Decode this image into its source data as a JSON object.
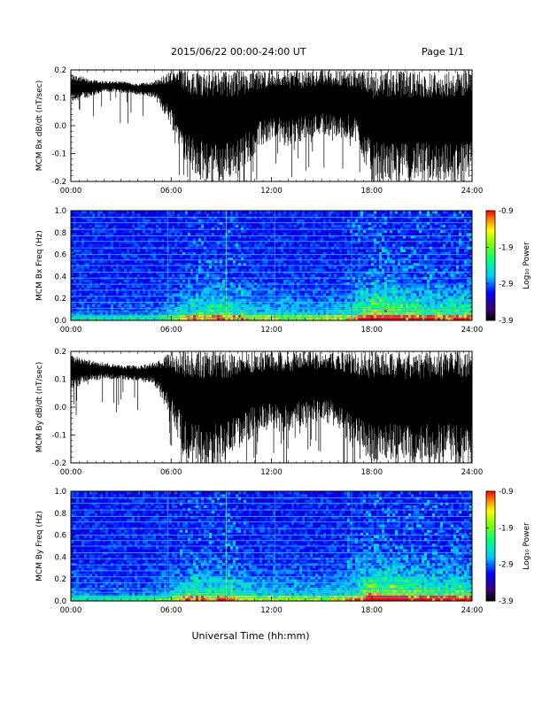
{
  "header": {
    "title": "2015/06/22  00:00-24:00 UT",
    "page": "Page 1/1"
  },
  "footer": {
    "xlabel": "Universal Time (hh:mm)"
  },
  "chart_data": [
    {
      "type": "line",
      "ylabel": "MCM Bx dB/dt (nT/sec)",
      "xlabel": "",
      "x_ticks": [
        "00:00",
        "06:00",
        "12:00",
        "18:00",
        "24:00"
      ],
      "y_ticks": [
        "-0.2",
        "-0.1",
        "0.0",
        "0.1",
        "0.2"
      ],
      "xlim_hours": [
        0,
        24
      ],
      "ylim": [
        -0.2,
        0.2
      ],
      "series_envelope": {
        "hours": [
          0,
          1,
          2,
          3,
          4,
          5,
          6,
          7,
          8,
          9,
          10,
          11,
          12,
          13,
          14,
          15,
          16,
          17,
          18,
          19,
          20,
          21,
          22,
          23,
          24
        ],
        "upper": [
          0.19,
          0.17,
          0.16,
          0.16,
          0.15,
          0.16,
          0.2,
          0.2,
          0.2,
          0.2,
          0.2,
          0.2,
          0.2,
          0.2,
          0.2,
          0.2,
          0.2,
          0.2,
          0.2,
          0.2,
          0.2,
          0.2,
          0.2,
          0.2,
          0.2
        ],
        "lower": [
          0.08,
          0.1,
          0.12,
          0.12,
          0.11,
          0.1,
          0.0,
          -0.15,
          -0.2,
          -0.2,
          -0.18,
          -0.1,
          -0.05,
          -0.08,
          -0.05,
          -0.03,
          -0.05,
          -0.05,
          -0.2,
          -0.2,
          -0.2,
          -0.2,
          -0.2,
          -0.2,
          -0.2
        ]
      }
    },
    {
      "type": "heatmap",
      "ylabel": "MCM Bx Freq (Hz)",
      "colorbar_label": "Log₁₀ Power",
      "colorbar_ticks": [
        "-0.9",
        "-1.9",
        "-2.9",
        "-3.9"
      ],
      "colorbar_range": [
        -3.9,
        -0.9
      ],
      "x_ticks": [
        "00:00",
        "06:00",
        "12:00",
        "18:00",
        "24:00"
      ],
      "y_ticks": [
        "0.0",
        "0.2",
        "0.4",
        "0.6",
        "0.8",
        "1.0"
      ],
      "xlim_hours": [
        0,
        24
      ],
      "ylim": [
        0,
        1
      ],
      "harmonic_lines_hz": [
        0.03,
        0.055,
        0.08,
        0.11,
        0.165,
        0.22,
        0.275,
        0.33,
        0.385,
        0.44,
        0.5,
        0.55,
        0.6,
        0.66,
        0.72,
        0.77,
        0.83,
        0.89,
        0.94
      ],
      "activity_by_hour": [
        0.1,
        0.1,
        0.1,
        0.1,
        0.1,
        0.12,
        0.25,
        0.45,
        0.55,
        0.55,
        0.45,
        0.35,
        0.35,
        0.3,
        0.3,
        0.3,
        0.35,
        0.45,
        0.9,
        0.85,
        0.7,
        0.6,
        0.55,
        0.6,
        0.6
      ]
    },
    {
      "type": "line",
      "ylabel": "MCM By dB/dt (nT/sec)",
      "xlabel": "",
      "x_ticks": [
        "00:00",
        "06:00",
        "12:00",
        "18:00",
        "24:00"
      ],
      "y_ticks": [
        "-0.2",
        "-0.1",
        "0.0",
        "0.1",
        "0.2"
      ],
      "xlim_hours": [
        0,
        24
      ],
      "ylim": [
        -0.2,
        0.2
      ],
      "series_envelope": {
        "hours": [
          0,
          1,
          2,
          3,
          4,
          5,
          6,
          7,
          8,
          9,
          10,
          11,
          12,
          13,
          14,
          15,
          16,
          17,
          18,
          19,
          20,
          21,
          22,
          23,
          24
        ],
        "upper": [
          0.19,
          0.17,
          0.16,
          0.15,
          0.15,
          0.16,
          0.2,
          0.2,
          0.2,
          0.2,
          0.2,
          0.2,
          0.2,
          0.2,
          0.2,
          0.2,
          0.2,
          0.2,
          0.2,
          0.2,
          0.2,
          0.2,
          0.2,
          0.2,
          0.2
        ],
        "lower": [
          0.06,
          0.09,
          0.1,
          0.1,
          0.09,
          0.08,
          -0.05,
          -0.2,
          -0.2,
          -0.2,
          -0.15,
          -0.1,
          -0.08,
          -0.1,
          -0.06,
          -0.05,
          -0.08,
          -0.15,
          -0.2,
          -0.2,
          -0.2,
          -0.2,
          -0.2,
          -0.2,
          -0.2
        ]
      }
    },
    {
      "type": "heatmap",
      "ylabel": "MCM By Freq (Hz)",
      "colorbar_label": "Log₁₀ Power",
      "colorbar_ticks": [
        "-0.9",
        "-1.9",
        "-2.9",
        "-3.9"
      ],
      "colorbar_range": [
        -3.9,
        -0.9
      ],
      "x_ticks": [
        "00:00",
        "06:00",
        "12:00",
        "18:00",
        "24:00"
      ],
      "y_ticks": [
        "0.0",
        "0.2",
        "0.4",
        "0.6",
        "0.8",
        "1.0"
      ],
      "xlim_hours": [
        0,
        24
      ],
      "ylim": [
        0,
        1
      ],
      "harmonic_lines_hz": [
        0.03,
        0.055,
        0.08,
        0.11,
        0.165,
        0.22,
        0.275,
        0.33,
        0.385,
        0.44,
        0.5,
        0.55,
        0.6,
        0.66,
        0.72,
        0.77,
        0.83,
        0.89,
        0.94
      ],
      "activity_by_hour": [
        0.12,
        0.12,
        0.12,
        0.12,
        0.12,
        0.15,
        0.3,
        0.5,
        0.55,
        0.55,
        0.45,
        0.35,
        0.35,
        0.3,
        0.3,
        0.3,
        0.35,
        0.45,
        0.9,
        0.85,
        0.75,
        0.65,
        0.6,
        0.6,
        0.6
      ]
    }
  ]
}
